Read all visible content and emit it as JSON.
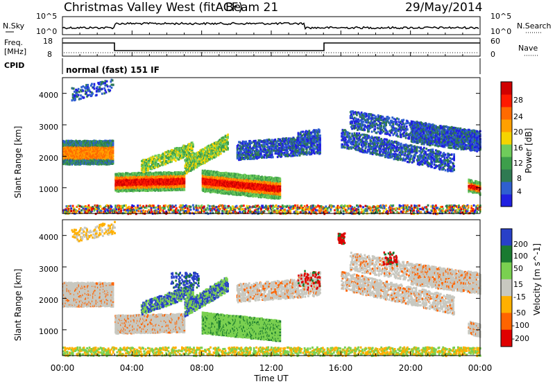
{
  "header": {
    "station": "Christmas Valley West (fitACF)",
    "beam": "Beam 21",
    "date": "29/May/2014"
  },
  "panels": {
    "nsky": {
      "left_label": "N.Sky",
      "right_label": "N.Search",
      "ticks_left": [
        "10^5",
        "10^0"
      ],
      "ticks_right": [
        "10^5",
        "10^0"
      ]
    },
    "freq": {
      "left_label_1": "Freq.",
      "left_label_2": "[MHz]",
      "right_label": "Nave",
      "ticks_left": [
        "18",
        "8"
      ],
      "ticks_right": [
        "60",
        "0"
      ]
    },
    "cpid": {
      "label": "CPID",
      "value": "normal (fast) 151 IF"
    }
  },
  "colors": {
    "power": [
      "#2020e0",
      "#2f5fd0",
      "#2f7a52",
      "#3d9e4b",
      "#6fcc5b",
      "#f5d400",
      "#ffa000",
      "#ff6a00",
      "#ff1a00",
      "#d00000"
    ],
    "velocity": [
      "#2840c8",
      "#1a7a30",
      "#7ad050",
      "#c8c8c0",
      "#ffb000",
      "#ff6400",
      "#e00000"
    ]
  },
  "chart_data": [
    {
      "type": "heatmap",
      "name": "power",
      "ylabel": "Slant Range [km]",
      "yticks": [
        "4000",
        "3000",
        "2000",
        "1000"
      ],
      "colorbar_label": "Power [dB]",
      "colorbar_ticks": [
        "28",
        "24",
        "20",
        "16",
        "12",
        "8",
        "4"
      ],
      "ylim": [
        180,
        4500
      ],
      "regions": [
        {
          "x": [
            0.0,
            2.9
          ],
          "y": [
            1900,
            2400
          ],
          "level": "mid-high"
        },
        {
          "x": [
            3.0,
            7.0
          ],
          "y": [
            900,
            1600
          ],
          "level": "high"
        },
        {
          "x": [
            8.0,
            12.5
          ],
          "y": [
            900,
            1700
          ],
          "level": "high"
        },
        {
          "x": [
            5.5,
            10.0
          ],
          "y": [
            1500,
            2400
          ],
          "level": "mid"
        },
        {
          "x": [
            16.0,
            24.0
          ],
          "y": [
            1800,
            3300
          ],
          "level": "low"
        },
        {
          "x": [
            23.5,
            24.0
          ],
          "y": [
            900,
            1200
          ],
          "level": "high"
        }
      ]
    },
    {
      "type": "heatmap",
      "name": "velocity",
      "ylabel": "Slant Range [km]",
      "yticks": [
        "4000",
        "3000",
        "2000",
        "1000"
      ],
      "colorbar_label": "Velocity [m s^-1]",
      "colorbar_ticks": [
        "200",
        "100",
        "50",
        "15",
        "-15",
        "-50",
        "-100",
        "-200"
      ],
      "ylim": [
        180,
        4500
      ],
      "regions": [
        {
          "x": [
            0.0,
            2.9
          ],
          "y": [
            1900,
            2400
          ],
          "value": 0
        },
        {
          "x": [
            3.0,
            7.0
          ],
          "y": [
            900,
            1700
          ],
          "value": 0
        },
        {
          "x": [
            8.0,
            12.5
          ],
          "y": [
            900,
            1600
          ],
          "value": 50
        },
        {
          "x": [
            6.0,
            7.5
          ],
          "y": [
            2300,
            2900
          ],
          "value": 150
        },
        {
          "x": [
            13.5,
            14.8
          ],
          "y": [
            2300,
            2900
          ],
          "value": -150
        },
        {
          "x": [
            15.8,
            16.2
          ],
          "y": [
            3800,
            4100
          ],
          "value": -200
        },
        {
          "x": [
            18.4,
            19.2
          ],
          "y": [
            3100,
            3500
          ],
          "value": -200
        },
        {
          "x": [
            16.0,
            24.0
          ],
          "y": [
            1800,
            3300
          ],
          "value": 0
        }
      ]
    }
  ],
  "xaxis": {
    "label": "Time UT",
    "ticks": [
      "00:00",
      "04:00",
      "08:00",
      "12:00",
      "16:00",
      "20:00",
      "00:00"
    ]
  }
}
